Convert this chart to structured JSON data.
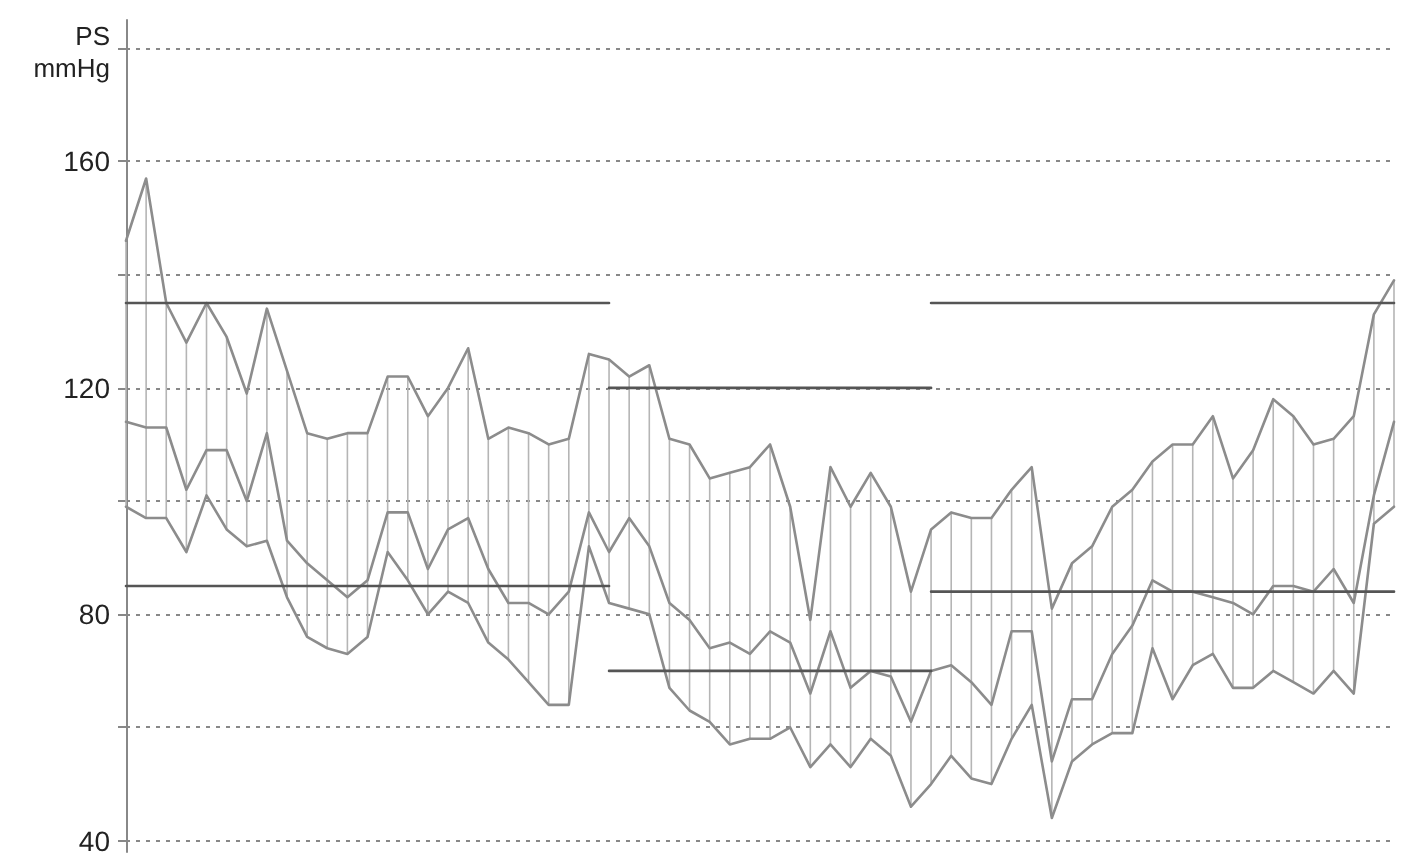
{
  "chart_data": {
    "type": "line",
    "ylabel": "PS mmHg",
    "categories": [
      null,
      null,
      null,
      null,
      null,
      null,
      null,
      null,
      null,
      null,
      null,
      null,
      null,
      null,
      null,
      null,
      null,
      null,
      null,
      null,
      null,
      null,
      null,
      null,
      null,
      null,
      null,
      null,
      null,
      null,
      null,
      null,
      null,
      null,
      null,
      null,
      null,
      null,
      null,
      null,
      null,
      null,
      null,
      null,
      null,
      null,
      null,
      null,
      null,
      null,
      null,
      null,
      null,
      null,
      null,
      null,
      null,
      null,
      null,
      null,
      null,
      null,
      null,
      null
    ],
    "series": [
      {
        "color": "#8c8c8c",
        "values": [
          146,
          157,
          135,
          128,
          135,
          129,
          119,
          134,
          123,
          112,
          111,
          112,
          112,
          122,
          122,
          115,
          120,
          127,
          111,
          113,
          112,
          110,
          111,
          126,
          125,
          122,
          124,
          111,
          110,
          104,
          105,
          106,
          110,
          99,
          79,
          106,
          99,
          105,
          99,
          84,
          95,
          98,
          97,
          97,
          102,
          106,
          81,
          89,
          92,
          99,
          102,
          107,
          110,
          110,
          115,
          104,
          109,
          118,
          115,
          110,
          111,
          115,
          133,
          139
        ]
      },
      {
        "color": "#8c8c8c",
        "values": [
          114,
          113,
          113,
          102,
          109,
          109,
          100,
          112,
          93,
          89,
          86,
          83,
          86,
          98,
          98,
          88,
          95,
          97,
          88,
          82,
          82,
          80,
          84,
          98,
          91,
          97,
          92,
          82,
          79,
          74,
          75,
          73,
          77,
          75,
          66,
          77,
          67,
          70,
          69,
          61,
          70,
          71,
          68,
          64,
          77,
          77,
          54,
          65,
          65,
          73,
          78,
          86,
          84,
          84,
          83,
          82,
          80,
          85,
          85,
          84,
          88,
          82,
          101,
          114
        ],
        "errors": [
          [
            99,
            146
          ],
          [
            97,
            157
          ],
          [
            97,
            135
          ],
          [
            91,
            128
          ],
          [
            101,
            135
          ],
          [
            95,
            129
          ],
          [
            92,
            119
          ],
          [
            93,
            134
          ],
          [
            83,
            123
          ],
          [
            76,
            112
          ],
          [
            74,
            111
          ],
          [
            73,
            112
          ],
          [
            76,
            112
          ],
          [
            91,
            122
          ],
          [
            86,
            122
          ],
          [
            80,
            115
          ],
          [
            84,
            120
          ],
          [
            82,
            127
          ],
          [
            75,
            111
          ],
          [
            72,
            113
          ],
          [
            68,
            112
          ],
          [
            64,
            110
          ],
          [
            64,
            111
          ],
          [
            92,
            126
          ],
          [
            82,
            125
          ],
          [
            81,
            122
          ],
          [
            80,
            124
          ],
          [
            67,
            111
          ],
          [
            63,
            110
          ],
          [
            61,
            104
          ],
          [
            57,
            105
          ],
          [
            58,
            106
          ],
          [
            58,
            110
          ],
          [
            60,
            99
          ],
          [
            53,
            79
          ],
          [
            57,
            106
          ],
          [
            53,
            99
          ],
          [
            58,
            105
          ],
          [
            55,
            99
          ],
          [
            46,
            84
          ],
          [
            50,
            95
          ],
          [
            55,
            98
          ],
          [
            51,
            97
          ],
          [
            50,
            97
          ],
          [
            58,
            102
          ],
          [
            64,
            106
          ],
          [
            44,
            81
          ],
          [
            54,
            89
          ],
          [
            57,
            92
          ],
          [
            59,
            99
          ],
          [
            59,
            102
          ],
          [
            74,
            107
          ],
          [
            65,
            110
          ],
          [
            71,
            110
          ],
          [
            73,
            115
          ],
          [
            67,
            104
          ],
          [
            67,
            109
          ],
          [
            70,
            118
          ],
          [
            68,
            115
          ],
          [
            66,
            110
          ],
          [
            70,
            111
          ],
          [
            66,
            115
          ],
          [
            96,
            133
          ],
          [
            99,
            139
          ]
        ]
      },
      {
        "color": "#8c8c8c",
        "values": [
          99,
          97,
          97,
          91,
          101,
          95,
          92,
          93,
          83,
          76,
          74,
          73,
          76,
          91,
          86,
          80,
          84,
          82,
          75,
          72,
          68,
          64,
          64,
          92,
          82,
          81,
          80,
          67,
          63,
          61,
          57,
          58,
          58,
          60,
          53,
          57,
          53,
          58,
          55,
          46,
          50,
          55,
          51,
          50,
          58,
          64,
          44,
          54,
          57,
          59,
          59,
          74,
          65,
          71,
          73,
          67,
          67,
          70,
          68,
          66,
          70,
          66,
          96,
          99
        ]
      },
      {
        "color": "#555555",
        "values": [
          135,
          135,
          135,
          135,
          135,
          135,
          135,
          135,
          135,
          135,
          135,
          135,
          135,
          135,
          135,
          135,
          135,
          135,
          135,
          135,
          135,
          135,
          135,
          135,
          135,
          null,
          null,
          null,
          null,
          null,
          null,
          null,
          null,
          null,
          null,
          null,
          null,
          null,
          null,
          null,
          null,
          null,
          null,
          null,
          null,
          null,
          null,
          null,
          null,
          null,
          null,
          null,
          null,
          null,
          null,
          null,
          null,
          null,
          null,
          null,
          null,
          null,
          null,
          null
        ]
      },
      {
        "color": "#555555",
        "values": [
          85,
          85,
          85,
          85,
          85,
          85,
          85,
          85,
          85,
          85,
          85,
          85,
          85,
          85,
          85,
          85,
          85,
          85,
          85,
          85,
          85,
          85,
          85,
          85,
          85,
          null,
          null,
          null,
          null,
          null,
          null,
          null,
          null,
          null,
          null,
          null,
          null,
          null,
          null,
          null,
          null,
          null,
          null,
          null,
          null,
          null,
          null,
          null,
          null,
          null,
          null,
          null,
          null,
          null,
          null,
          null,
          null,
          null,
          null,
          null,
          null,
          null,
          null,
          null
        ]
      },
      {
        "color": "#555555",
        "values": [
          null,
          null,
          null,
          null,
          null,
          null,
          null,
          null,
          null,
          null,
          null,
          null,
          null,
          null,
          null,
          null,
          null,
          null,
          null,
          null,
          null,
          null,
          null,
          null,
          120,
          120,
          120,
          120,
          120,
          120,
          120,
          120,
          120,
          120,
          120,
          120,
          120,
          120,
          120,
          120,
          120,
          null,
          null,
          null,
          null,
          null,
          null,
          null,
          null,
          null,
          null,
          null,
          null,
          null,
          null,
          null,
          null,
          null,
          null,
          null,
          null,
          null,
          null,
          null
        ]
      },
      {
        "color": "#555555",
        "values": [
          null,
          null,
          null,
          null,
          null,
          null,
          null,
          null,
          null,
          null,
          null,
          null,
          null,
          null,
          null,
          null,
          null,
          null,
          null,
          null,
          null,
          null,
          null,
          null,
          70,
          70,
          70,
          70,
          70,
          70,
          70,
          70,
          70,
          70,
          70,
          70,
          70,
          70,
          70,
          70,
          70,
          null,
          null,
          null,
          null,
          null,
          null,
          null,
          null,
          null,
          null,
          null,
          null,
          null,
          null,
          null,
          null,
          null,
          null,
          null,
          null,
          null,
          null,
          null
        ]
      },
      {
        "color": "#555555",
        "values": [
          null,
          null,
          null,
          null,
          null,
          null,
          null,
          null,
          null,
          null,
          null,
          null,
          null,
          null,
          null,
          null,
          null,
          null,
          null,
          null,
          null,
          null,
          null,
          null,
          null,
          null,
          null,
          null,
          null,
          null,
          null,
          null,
          null,
          null,
          null,
          null,
          null,
          null,
          null,
          null,
          135,
          135,
          135,
          135,
          135,
          135,
          135,
          135,
          135,
          135,
          135,
          135,
          135,
          135,
          135,
          135,
          135,
          135,
          135,
          135,
          135,
          135,
          135,
          135
        ]
      },
      {
        "color": "#555555",
        "values": [
          null,
          null,
          null,
          null,
          null,
          null,
          null,
          null,
          null,
          null,
          null,
          null,
          null,
          null,
          null,
          null,
          null,
          null,
          null,
          null,
          null,
          null,
          null,
          null,
          null,
          null,
          null,
          null,
          null,
          null,
          null,
          null,
          null,
          null,
          null,
          null,
          null,
          null,
          null,
          null,
          84,
          84,
          84,
          84,
          84,
          84,
          84,
          84,
          84,
          84,
          84,
          84,
          84,
          84,
          84,
          84,
          84,
          84,
          84,
          84,
          84,
          84,
          84,
          84
        ]
      }
    ],
    "ylim": [
      38,
      185
    ],
    "yticks": [
      40,
      {
        "value": 60,
        "label": null
      },
      80,
      {
        "value": 100,
        "label": null
      },
      120,
      {
        "value": 140,
        "label": null
      },
      160,
      {
        "value": 180,
        "label": null
      }
    ],
    "grid": "y",
    "marker": "none",
    "line_style": "solid"
  }
}
